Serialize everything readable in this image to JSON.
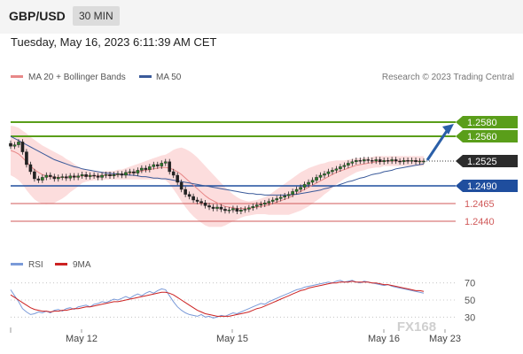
{
  "header": {
    "symbol": "GBP/USD",
    "interval": "30 MIN"
  },
  "datetime": "Tuesday, May 16, 2023 6:11:39 AM CET",
  "credit": "Research © 2023 Trading Central",
  "watermark": "FX168",
  "colors": {
    "up": "#2a7a2a",
    "green_level": "#5a9e1a",
    "blue_level": "#1f4e9e",
    "red_level": "#d05a5a",
    "current": "#2b2b2b",
    "arrow": "#2b5fa8",
    "ma20": "#e88888",
    "ma50": "#3a5a9a",
    "rsi": "#7a9ad8",
    "rsi_ma": "#cc2222"
  },
  "chart_data": [
    {
      "type": "line",
      "chart": "price",
      "legend": [
        {
          "name": "MA 20 + Bollinger Bands",
          "color": "#e88888"
        },
        {
          "name": "MA 50",
          "color": "#3a5a9a"
        }
      ],
      "x_ticks": [
        "May 12",
        "May 15",
        "May 16",
        "May 23"
      ],
      "y_range": [
        1.2415,
        1.2605
      ],
      "current_price": "1.2525",
      "levels": [
        {
          "label": "1.2580",
          "value": 1.258,
          "kind": "resistance-green"
        },
        {
          "label": "1.2560",
          "value": 1.256,
          "kind": "resistance-green"
        },
        {
          "label": "1.2490",
          "value": 1.249,
          "kind": "pivot-blue"
        },
        {
          "label": "1.2465",
          "value": 1.2465,
          "kind": "support-red"
        },
        {
          "label": "1.2440",
          "value": 1.244,
          "kind": "support-red"
        }
      ],
      "projection": {
        "from": 1.2525,
        "to": 1.258
      },
      "close": [
        1.2546,
        1.2548,
        1.2552,
        1.2538,
        1.252,
        1.251,
        1.25,
        1.2498,
        1.2502,
        1.2505,
        1.2503,
        1.25,
        1.2502,
        1.2503,
        1.2501,
        1.2504,
        1.2502,
        1.2504,
        1.2506,
        1.2503,
        1.2505,
        1.2504,
        1.2502,
        1.2505,
        1.2506,
        1.2504,
        1.2506,
        1.2507,
        1.2505,
        1.2509,
        1.251,
        1.2508,
        1.2512,
        1.2515,
        1.2513,
        1.2517,
        1.252,
        1.2518,
        1.2522,
        1.2524,
        1.251,
        1.2505,
        1.2495,
        1.2485,
        1.2478,
        1.2475,
        1.247,
        1.2468,
        1.2466,
        1.2462,
        1.246,
        1.2458,
        1.246,
        1.2457,
        1.2455,
        1.2456,
        1.2458,
        1.2454,
        1.2456,
        1.2457,
        1.2459,
        1.2461,
        1.2463,
        1.2464,
        1.2466,
        1.2468,
        1.247,
        1.2472,
        1.2474,
        1.2476,
        1.2478,
        1.2482,
        1.2485,
        1.2488,
        1.2492,
        1.2495,
        1.2498,
        1.2502,
        1.2505,
        1.2507,
        1.251,
        1.2512,
        1.2514,
        1.2517,
        1.2519,
        1.2522,
        1.2524,
        1.2526,
        1.2525,
        1.2527,
        1.2526,
        1.2525,
        1.2527,
        1.2524,
        1.2526,
        1.2525,
        1.2527,
        1.2525,
        1.2524,
        1.2526,
        1.2525,
        1.2526,
        1.2524,
        1.2525,
        1.2525
      ],
      "ma20": [
        1.254,
        1.2538,
        1.2535,
        1.253,
        1.2524,
        1.2518,
        1.2513,
        1.2509,
        1.2506,
        1.2504,
        1.2503,
        1.2502,
        1.2502,
        1.2502,
        1.2502,
        1.2503,
        1.2503,
        1.2503,
        1.2504,
        1.2504,
        1.2504,
        1.2504,
        1.2504,
        1.2504,
        1.2505,
        1.2505,
        1.2505,
        1.2506,
        1.2506,
        1.2507,
        1.2508,
        1.2509,
        1.251,
        1.2511,
        1.2512,
        1.2513,
        1.2514,
        1.2515,
        1.2516,
        1.2516,
        1.2515,
        1.2513,
        1.251,
        1.2506,
        1.2501,
        1.2496,
        1.2491,
        1.2486,
        1.2481,
        1.2476,
        1.2472,
        1.2469,
        1.2466,
        1.2463,
        1.2461,
        1.246,
        1.2459,
        1.2458,
        1.2458,
        1.2458,
        1.2458,
        1.2459,
        1.246,
        1.2461,
        1.2462,
        1.2463,
        1.2465,
        1.2467,
        1.2469,
        1.2471,
        1.2473,
        1.2476,
        1.2479,
        1.2482,
        1.2485,
        1.2488,
        1.2491,
        1.2494,
        1.2497,
        1.25,
        1.2503,
        1.2506,
        1.2509,
        1.2511,
        1.2513,
        1.2515,
        1.2517,
        1.2519,
        1.252,
        1.2521,
        1.2522,
        1.2523,
        1.2524,
        1.2524,
        1.2525,
        1.2525,
        1.2525,
        1.2525,
        1.2525,
        1.2525,
        1.2525,
        1.2525,
        1.2525,
        1.2525,
        1.2525
      ],
      "band_width": [
        0.0035,
        0.0036,
        0.0037,
        0.0038,
        0.004,
        0.0041,
        0.0042,
        0.0042,
        0.0041,
        0.004,
        0.0038,
        0.0036,
        0.0033,
        0.003,
        0.0026,
        0.0022,
        0.0018,
        0.0014,
        0.001,
        0.0008,
        0.0007,
        0.0006,
        0.0006,
        0.0006,
        0.0006,
        0.0006,
        0.0006,
        0.0007,
        0.0007,
        0.0008,
        0.0009,
        0.001,
        0.0011,
        0.0012,
        0.0013,
        0.0014,
        0.0015,
        0.0016,
        0.0017,
        0.0018,
        0.0022,
        0.0028,
        0.0033,
        0.0038,
        0.0041,
        0.0043,
        0.0044,
        0.0044,
        0.0043,
        0.0042,
        0.004,
        0.0037,
        0.0034,
        0.0031,
        0.0027,
        0.0023,
        0.0019,
        0.0016,
        0.0013,
        0.0011,
        0.001,
        0.001,
        0.001,
        0.0011,
        0.0012,
        0.0014,
        0.0016,
        0.0018,
        0.002,
        0.0022,
        0.0024,
        0.0025,
        0.0026,
        0.0027,
        0.0027,
        0.0027,
        0.0026,
        0.0025,
        0.0024,
        0.0022,
        0.0021,
        0.0019,
        0.0017,
        0.0015,
        0.0013,
        0.0012,
        0.0011,
        0.001,
        0.0009,
        0.0009,
        0.0008,
        0.0008,
        0.0008,
        0.0008,
        0.0007,
        0.0007,
        0.0007,
        0.0007,
        0.0007,
        0.0007,
        0.0007,
        0.0007,
        0.0007,
        0.0007,
        0.0007
      ],
      "ma50": [
        1.256,
        1.2557,
        1.2554,
        1.2551,
        1.2548,
        1.2545,
        1.2542,
        1.2539,
        1.2536,
        1.2533,
        1.253,
        1.2527,
        1.2525,
        1.2523,
        1.2521,
        1.2519,
        1.2517,
        1.2516,
        1.2514,
        1.2513,
        1.2512,
        1.2511,
        1.251,
        1.2509,
        1.2508,
        1.2508,
        1.2507,
        1.2507,
        1.2506,
        1.2506,
        1.2505,
        1.2505,
        1.2504,
        1.2503,
        1.2503,
        1.2502,
        1.2501,
        1.2501,
        1.25,
        1.25,
        1.2499,
        1.2498,
        1.2497,
        1.2496,
        1.2495,
        1.2494,
        1.2493,
        1.2492,
        1.2491,
        1.249,
        1.2489,
        1.2488,
        1.2487,
        1.2486,
        1.2485,
        1.2484,
        1.2483,
        1.2482,
        1.2481,
        1.248,
        1.2479,
        1.2479,
        1.2478,
        1.2478,
        1.2477,
        1.2477,
        1.2477,
        1.2477,
        1.2477,
        1.2477,
        1.2477,
        1.2478,
        1.2478,
        1.2479,
        1.248,
        1.2481,
        1.2482,
        1.2483,
        1.2484,
        1.2486,
        1.2487,
        1.2489,
        1.249,
        1.2492,
        1.2494,
        1.2496,
        1.2497,
        1.2499,
        1.2501,
        1.2502,
        1.2504,
        1.2506,
        1.2507,
        1.2508,
        1.251,
        1.2511,
        1.2512,
        1.2514,
        1.2515,
        1.2516,
        1.2517,
        1.2518,
        1.2519,
        1.252,
        1.2521
      ]
    },
    {
      "type": "line",
      "chart": "rsi",
      "legend": [
        {
          "name": "RSI",
          "color": "#7a9ad8"
        },
        {
          "name": "9MA",
          "color": "#cc2222"
        }
      ],
      "y_ticks": [
        "70",
        "50",
        "30"
      ],
      "y_range": [
        20,
        80
      ],
      "rsi": [
        62,
        55,
        48,
        40,
        36,
        33,
        34,
        36,
        35,
        37,
        35,
        38,
        39,
        37,
        40,
        41,
        39,
        42,
        43,
        44,
        42,
        45,
        46,
        48,
        47,
        49,
        51,
        50,
        52,
        54,
        52,
        55,
        57,
        55,
        58,
        60,
        58,
        61,
        63,
        62,
        55,
        48,
        42,
        38,
        35,
        33,
        32,
        31,
        33,
        30,
        31,
        29,
        30,
        32,
        31,
        33,
        35,
        34,
        36,
        38,
        40,
        42,
        44,
        46,
        45,
        48,
        50,
        52,
        54,
        56,
        58,
        60,
        62,
        63,
        65,
        66,
        67,
        68,
        69,
        70,
        71,
        70,
        72,
        73,
        71,
        72,
        73,
        71,
        70,
        72,
        71,
        70,
        69,
        68,
        67,
        68,
        66,
        65,
        64,
        63,
        62,
        61,
        60,
        59,
        58
      ],
      "rsi_ma": [
        56,
        53,
        50,
        47,
        44,
        41,
        39,
        38,
        37,
        37,
        36,
        37,
        37,
        38,
        38,
        39,
        40,
        40,
        41,
        42,
        42,
        43,
        44,
        45,
        46,
        47,
        48,
        48,
        49,
        50,
        51,
        52,
        53,
        54,
        55,
        56,
        57,
        58,
        59,
        59,
        58,
        56,
        53,
        50,
        47,
        44,
        41,
        38,
        36,
        34,
        33,
        32,
        31,
        31,
        31,
        31,
        32,
        33,
        34,
        35,
        36,
        38,
        40,
        41,
        43,
        45,
        47,
        49,
        51,
        53,
        55,
        57,
        59,
        61,
        62,
        64,
        65,
        66,
        67,
        68,
        69,
        70,
        70,
        71,
        71,
        71,
        72,
        71,
        71,
        71,
        71,
        70,
        70,
        69,
        68,
        68,
        67,
        66,
        65,
        64,
        63,
        62,
        61,
        61,
        60
      ]
    }
  ]
}
